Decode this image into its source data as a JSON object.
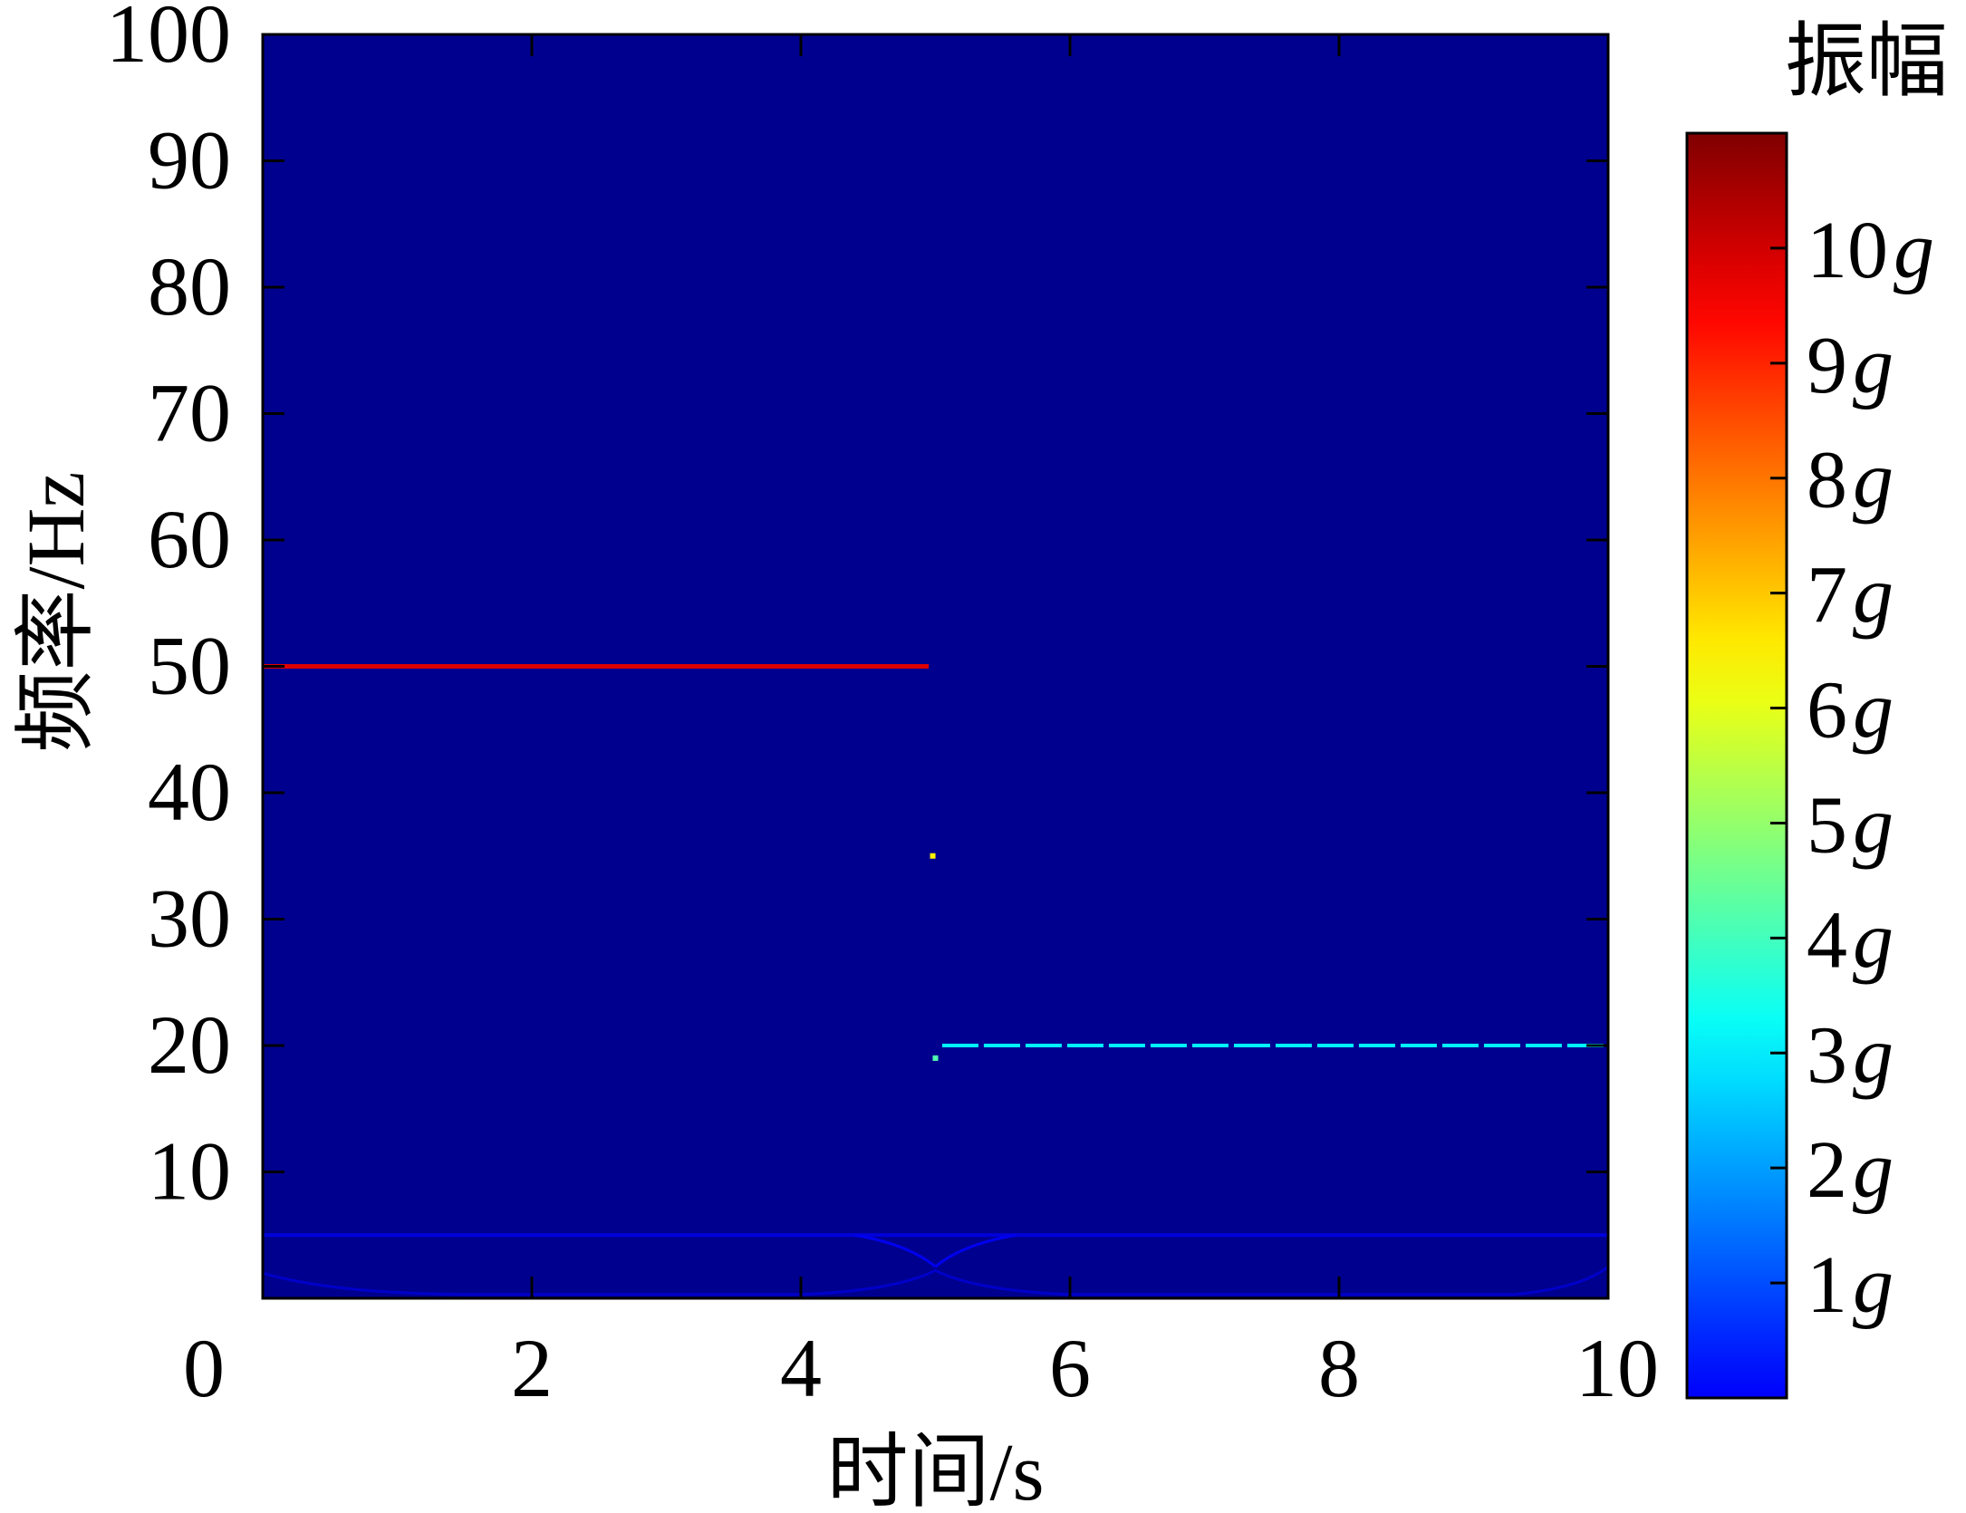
{
  "chart_data": {
    "type": "heatmap",
    "title": "",
    "xlabel": "时间/s",
    "ylabel": "频率/Hz",
    "xlim": [
      0,
      10
    ],
    "ylim": [
      0,
      100
    ],
    "x_ticks": [
      0,
      2,
      4,
      6,
      8,
      10
    ],
    "y_ticks": [
      10,
      20,
      30,
      40,
      50,
      60,
      70,
      80,
      90,
      100
    ],
    "colormap": "jet",
    "background_color": "#00008f",
    "colorbar": {
      "title": "振幅",
      "range": [
        0,
        11
      ],
      "unit": "g",
      "ticks": [
        1,
        2,
        3,
        4,
        5,
        6,
        7,
        8,
        9,
        10
      ],
      "placement": "right"
    },
    "features": [
      {
        "kind": "ridge",
        "t_start": 0.0,
        "t_end": 4.95,
        "frequency": 50,
        "amplitude": 10
      },
      {
        "kind": "ridge",
        "t_start": 5.05,
        "t_end": 10.0,
        "frequency": 20,
        "amplitude": 4
      },
      {
        "kind": "ridge",
        "t_start": 0.0,
        "t_end": 10.0,
        "frequency": 5,
        "amplitude": 1
      },
      {
        "kind": "spot",
        "t": 4.98,
        "frequency": 35,
        "amplitude": 7
      },
      {
        "kind": "spot",
        "t": 5.0,
        "frequency": 19,
        "amplitude": 5
      }
    ],
    "grid": false,
    "legend": "none"
  }
}
